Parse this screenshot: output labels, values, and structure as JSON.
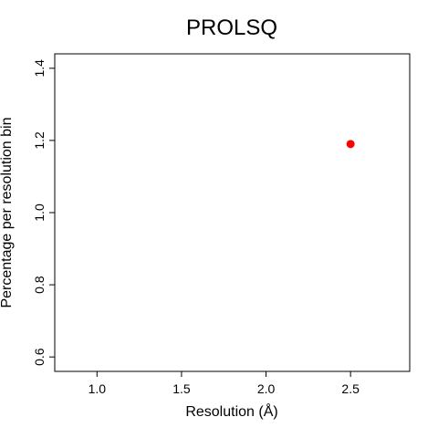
{
  "chart_data": {
    "type": "scatter",
    "title": "PROLSQ",
    "xlabel": "Resolution (Å)",
    "ylabel": "Percentage per resolution bin",
    "xlim": [
      0.75,
      2.85
    ],
    "ylim": [
      0.56,
      1.44
    ],
    "x_ticks": [
      1.0,
      1.5,
      2.0,
      2.5
    ],
    "x_tick_labels": [
      "1.0",
      "1.5",
      "2.0",
      "2.5"
    ],
    "y_ticks": [
      0.6,
      0.8,
      1.0,
      1.2,
      1.4
    ],
    "y_tick_labels": [
      "0.6",
      "0.8",
      "1.0",
      "1.2",
      "1.4"
    ],
    "grid": false,
    "series": [
      {
        "x": [
          2.5
        ],
        "y": [
          1.19
        ],
        "color": "#ff0000"
      }
    ]
  }
}
